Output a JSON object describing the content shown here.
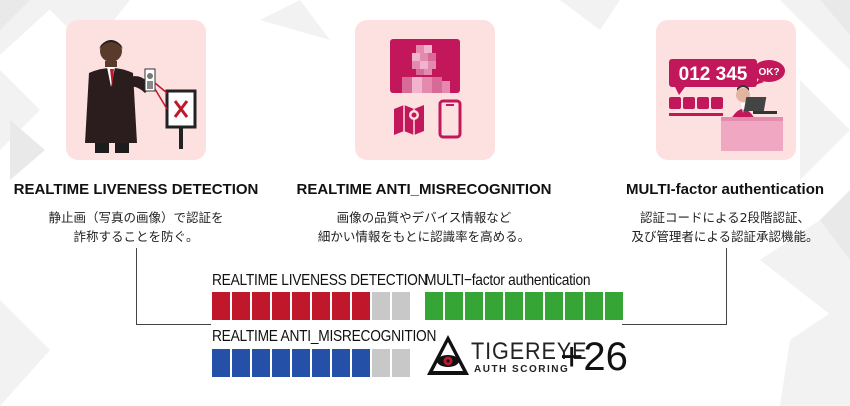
{
  "features": [
    {
      "title": "REALTIME LIVENESS DETECTION",
      "desc_lines": [
        "静止画（写真の画像）で認証を",
        "詐称することを防ぐ。"
      ]
    },
    {
      "title": "REALTIME ANTI_MISRECOGNITION",
      "desc_lines": [
        "画像の品質やデバイス情報など",
        "細かい情報をもとに認識率を高める。"
      ]
    },
    {
      "title": "MULTI-factor authentication",
      "desc_lines": [
        "認証コードによる2段階認証、",
        "及び管理者による認証承認機能。"
      ]
    }
  ],
  "otp_display": {
    "code": "012 345",
    "bubble": "OK?"
  },
  "bars": {
    "liveness": {
      "label": "REALTIME LIVENESS DETECTION",
      "filled": 8,
      "total": 10,
      "color": "#c0182a"
    },
    "misrecognition": {
      "label": "REALTIME ANTI_MISRECOGNITION",
      "filled": 8,
      "total": 10,
      "color": "#2450a8"
    },
    "multifactor": {
      "label": "MULTI−factor authentication",
      "filled": 10,
      "total": 10,
      "color": "#35a535"
    }
  },
  "logo": {
    "name": "TIGEREYE",
    "sub": "AUTH SCORING"
  },
  "score": "+26",
  "colors": {
    "card_bg": "#fde0e0",
    "magenta": "#c2185b",
    "empty_segment": "#c8c8c8"
  }
}
